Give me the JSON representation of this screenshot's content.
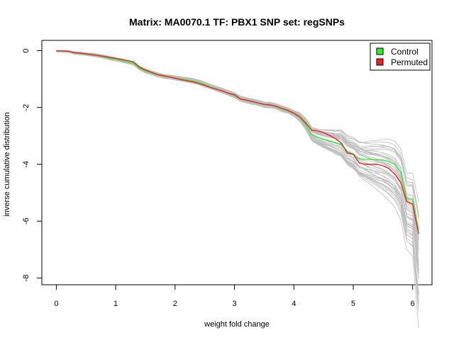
{
  "chart_data": {
    "type": "line",
    "title": "Matrix: MA0070.1 TF: PBX1 SNP set: regSNPs",
    "xlabel": "weight fold change",
    "ylabel": "inverse cumulative distribution",
    "xlim": [
      0,
      6.1
    ],
    "ylim": [
      -8,
      0
    ],
    "xticks": [
      0,
      1,
      2,
      3,
      4,
      5,
      6
    ],
    "yticks": [
      0,
      -2,
      -4,
      -6,
      -8
    ],
    "grid": false,
    "legend_position": "top-right",
    "background_series": {
      "name": "",
      "color": "#bebebe",
      "count": 40
    },
    "series": [
      {
        "name": "Control",
        "color": "#33ee33",
        "x": [
          0,
          0.2,
          0.3,
          0.4,
          0.5,
          0.6,
          0.7,
          0.8,
          0.9,
          1.0,
          1.1,
          1.2,
          1.3,
          1.4,
          1.5,
          1.6,
          1.7,
          1.8,
          1.9,
          2.0,
          2.1,
          2.2,
          2.3,
          2.4,
          2.5,
          2.6,
          2.7,
          2.8,
          2.9,
          3.0,
          3.1,
          3.2,
          3.3,
          3.4,
          3.5,
          3.6,
          3.7,
          3.8,
          3.9,
          4.0,
          4.1,
          4.2,
          4.3,
          4.4,
          4.5,
          4.6,
          4.7,
          4.8,
          4.9,
          5.0,
          5.1,
          5.2,
          5.3,
          5.4,
          5.5,
          5.6,
          5.7,
          5.8,
          5.9,
          6.0,
          6.1
        ],
        "y": [
          0,
          -0.02,
          -0.08,
          -0.1,
          -0.12,
          -0.15,
          -0.18,
          -0.22,
          -0.27,
          -0.3,
          -0.35,
          -0.4,
          -0.45,
          -0.62,
          -0.72,
          -0.78,
          -0.85,
          -0.9,
          -0.93,
          -0.96,
          -1.0,
          -1.03,
          -1.07,
          -1.12,
          -1.2,
          -1.28,
          -1.35,
          -1.42,
          -1.5,
          -1.58,
          -1.7,
          -1.75,
          -1.8,
          -1.85,
          -1.9,
          -1.92,
          -1.97,
          -2.05,
          -2.12,
          -2.22,
          -2.35,
          -2.6,
          -2.95,
          -3.05,
          -3.12,
          -3.18,
          -3.25,
          -3.3,
          -3.55,
          -3.65,
          -3.8,
          -3.82,
          -3.83,
          -3.84,
          -3.85,
          -3.9,
          -4.0,
          -4.3,
          -5.2,
          -5.25,
          -6.3
        ]
      },
      {
        "name": "Permuted",
        "color": "#ee2222",
        "x": [
          0,
          0.2,
          0.3,
          0.4,
          0.5,
          0.6,
          0.7,
          0.8,
          0.9,
          1.0,
          1.1,
          1.2,
          1.3,
          1.4,
          1.5,
          1.6,
          1.7,
          1.8,
          1.9,
          2.0,
          2.1,
          2.2,
          2.3,
          2.4,
          2.5,
          2.6,
          2.7,
          2.8,
          2.9,
          3.0,
          3.1,
          3.2,
          3.3,
          3.4,
          3.5,
          3.6,
          3.7,
          3.8,
          3.9,
          4.0,
          4.1,
          4.2,
          4.3,
          4.4,
          4.5,
          4.6,
          4.7,
          4.8,
          4.9,
          5.0,
          5.1,
          5.2,
          5.3,
          5.4,
          5.5,
          5.6,
          5.7,
          5.8,
          5.9,
          6.0,
          6.1
        ],
        "y": [
          0,
          -0.02,
          -0.07,
          -0.09,
          -0.11,
          -0.14,
          -0.17,
          -0.2,
          -0.24,
          -0.27,
          -0.31,
          -0.35,
          -0.4,
          -0.58,
          -0.68,
          -0.76,
          -0.84,
          -0.88,
          -0.92,
          -0.97,
          -1.02,
          -1.06,
          -1.1,
          -1.16,
          -1.22,
          -1.3,
          -1.36,
          -1.42,
          -1.5,
          -1.55,
          -1.7,
          -1.74,
          -1.79,
          -1.84,
          -1.89,
          -1.91,
          -1.96,
          -2.03,
          -2.1,
          -2.2,
          -2.33,
          -2.55,
          -2.8,
          -2.82,
          -2.88,
          -2.98,
          -3.1,
          -3.25,
          -3.6,
          -3.65,
          -3.95,
          -4.0,
          -4.0,
          -4.0,
          -4.05,
          -4.15,
          -4.35,
          -4.65,
          -5.3,
          -5.4,
          -6.45
        ]
      }
    ]
  }
}
